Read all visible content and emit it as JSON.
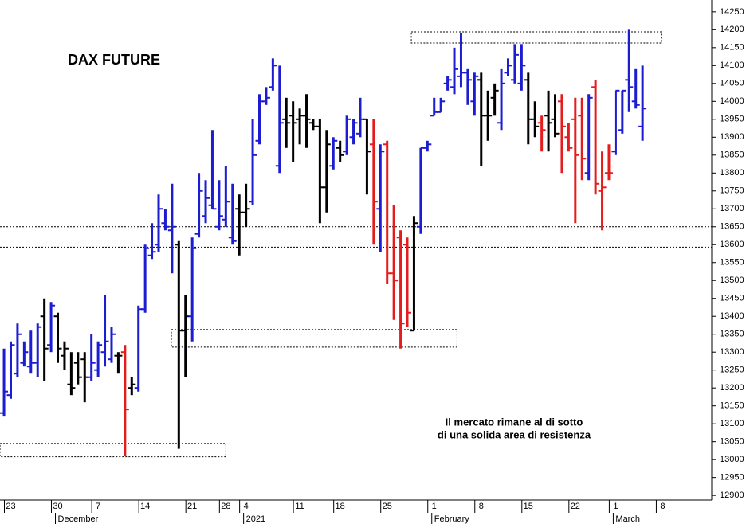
{
  "chart_data": {
    "type": "ohlc",
    "title": "DAX FUTURE",
    "annotation": [
      "Il mercato rimane al di sotto",
      "di una solida area di resistenza"
    ],
    "palette": {
      "u": "#1c1cd0",
      "d": "#e41c1c",
      "n": "#000000"
    },
    "bar_class": [
      "u",
      "u",
      "u",
      "u",
      "u",
      "u",
      "n",
      "u",
      "n",
      "n",
      "n",
      "n",
      "n",
      "u",
      "u",
      "u",
      "u",
      "n",
      "d",
      "n",
      "u",
      "u",
      "u",
      "u",
      "u",
      "u",
      "n",
      "n",
      "u",
      "u",
      "u",
      "u",
      "u",
      "u",
      "u",
      "n",
      "n",
      "u",
      "u",
      "u",
      "u",
      "u",
      "n",
      "n",
      "n",
      "n",
      "n",
      "n",
      "n",
      "u",
      "n",
      "u",
      "u",
      "u",
      "n",
      "d",
      "u",
      "d",
      "d",
      "d",
      "d",
      "n",
      "u",
      "u",
      "u",
      "u",
      "u",
      "u",
      "u",
      "u",
      "u",
      "n",
      "n",
      "n",
      "u",
      "u",
      "u",
      "u",
      "n",
      "n",
      "d",
      "n",
      "n",
      "d",
      "d",
      "d",
      "d",
      "u",
      "d",
      "d",
      "d",
      "u",
      "u",
      "u",
      "u",
      "u"
    ],
    "open": [
      13130,
      13180,
      13240,
      13270,
      13260,
      13270,
      13400,
      13320,
      13400,
      13290,
      13210,
      13270,
      13280,
      13230,
      13250,
      13300,
      13280,
      13290,
      13300,
      13200,
      13200,
      13420,
      13570,
      13600,
      13660,
      13640,
      13600,
      13360,
      13400,
      13630,
      13680,
      13710,
      13650,
      13670,
      13620,
      13700,
      13690,
      13720,
      13890,
      14000,
      14040,
      13820,
      13950,
      13960,
      13950,
      13960,
      13940,
      13930,
      13760,
      13820,
      13870,
      13860,
      13900,
      13910,
      13950,
      13880,
      13700,
      13880,
      13520,
      13620,
      13600,
      13360,
      13650,
      13870,
      13960,
      13970,
      14050,
      14040,
      14070,
      14080,
      14000,
      14060,
      13960,
      14010,
      13940,
      14080,
      14060,
      14050,
      14060,
      13950,
      13940,
      13960,
      13950,
      14000,
      13900,
      13950,
      13960,
      13800,
      14040,
      13750,
      13800,
      13860,
      13920,
      14060,
      14000,
      13930
    ],
    "high": [
      13310,
      13330,
      13380,
      13330,
      13360,
      13380,
      13450,
      13440,
      13410,
      13330,
      13300,
      13300,
      13300,
      13350,
      13330,
      13460,
      13370,
      13300,
      13320,
      13230,
      13430,
      13600,
      13660,
      13740,
      13700,
      13770,
      13610,
      13460,
      13620,
      13800,
      13780,
      13920,
      13780,
      13820,
      13770,
      13740,
      13770,
      13950,
      14020,
      14040,
      14120,
      14100,
      14010,
      14000,
      13980,
      14020,
      13950,
      13950,
      13920,
      13900,
      13890,
      13960,
      13950,
      14010,
      13950,
      13950,
      13880,
      13890,
      13710,
      13640,
      13620,
      13680,
      13870,
      13890,
      14010,
      14010,
      14070,
      14150,
      14190,
      14090,
      14080,
      14080,
      14030,
      14050,
      14090,
      14120,
      14160,
      14160,
      14080,
      14000,
      13960,
      14030,
      14020,
      14020,
      13940,
      14010,
      14010,
      14020,
      14060,
      13860,
      13880,
      14030,
      14030,
      14200,
      14090,
      14100
    ],
    "low": [
      13120,
      13170,
      13230,
      13260,
      13240,
      13230,
      13220,
      13300,
      13270,
      13250,
      13180,
      13210,
      13160,
      13220,
      13230,
      13260,
      13270,
      13240,
      13010,
      13180,
      13190,
      13410,
      13560,
      13580,
      13640,
      13520,
      13030,
      13230,
      13330,
      13620,
      13660,
      13700,
      13640,
      13650,
      13600,
      13570,
      13650,
      13710,
      13880,
      13990,
      14030,
      13800,
      13870,
      13830,
      13880,
      13870,
      13920,
      13660,
      13690,
      13810,
      13830,
      13850,
      13880,
      13900,
      13740,
      13600,
      13580,
      13490,
      13390,
      13310,
      13370,
      13360,
      13630,
      13860,
      13960,
      13970,
      14030,
      14020,
      14040,
      13990,
      13960,
      13820,
      13890,
      13960,
      13920,
      14070,
      14050,
      14030,
      13880,
      13900,
      13860,
      13860,
      13900,
      13800,
      13860,
      13660,
      13780,
      13780,
      13740,
      13640,
      13780,
      13850,
      13910,
      13970,
      13980,
      13890
    ],
    "close": [
      13190,
      13320,
      13350,
      13300,
      13270,
      13370,
      13310,
      13430,
      13310,
      13310,
      13200,
      13230,
      13230,
      13270,
      13320,
      13330,
      13350,
      13290,
      13140,
      13210,
      13420,
      13590,
      13580,
      13700,
      13650,
      13650,
      13360,
      13400,
      13590,
      13750,
      13730,
      13700,
      13680,
      13720,
      13610,
      13690,
      13700,
      13850,
      14000,
      14010,
      14100,
      13940,
      13940,
      13940,
      13960,
      13950,
      13930,
      13760,
      13880,
      13890,
      13850,
      13950,
      13940,
      13950,
      13860,
      13720,
      13860,
      13520,
      13500,
      13380,
      13410,
      13660,
      13870,
      13880,
      13970,
      14000,
      14060,
      14090,
      14080,
      14060,
      14070,
      13960,
      13960,
      14030,
      14050,
      14100,
      14130,
      14100,
      13950,
      13930,
      13920,
      13940,
      13910,
      13930,
      13870,
      13850,
      13840,
      14010,
      13770,
      13760,
      13800,
      14030,
      14030,
      14040,
      13990,
      13980
    ],
    "xlim": [
      -0.6,
      105.3
    ],
    "xticks": [
      {
        "value": 1,
        "label": "23"
      },
      {
        "value": 8,
        "label": "30"
      },
      {
        "value": 14,
        "label": "7"
      },
      {
        "value": 21,
        "label": "14"
      },
      {
        "value": 28,
        "label": "21"
      },
      {
        "value": 33,
        "label": "28"
      },
      {
        "value": 36,
        "label": "4"
      },
      {
        "value": 44,
        "label": "11"
      },
      {
        "value": 50,
        "label": "18"
      },
      {
        "value": 57,
        "label": "25"
      },
      {
        "value": 64,
        "label": "1"
      },
      {
        "value": 71,
        "label": "8"
      },
      {
        "value": 78,
        "label": "15"
      },
      {
        "value": 85,
        "label": "22"
      },
      {
        "value": 91,
        "label": "1"
      },
      {
        "value": 98,
        "label": "8"
      }
    ],
    "month_ticks": [
      {
        "value": 8,
        "label": "December"
      },
      {
        "value": 36,
        "label": "2021"
      },
      {
        "value": 64,
        "label": "February"
      },
      {
        "value": 91,
        "label": "March"
      }
    ],
    "ylim": [
      12887,
      14283
    ],
    "yticks": [
      12900,
      12950,
      13000,
      13050,
      13100,
      13150,
      13200,
      13250,
      13300,
      13350,
      13400,
      13450,
      13500,
      13550,
      13600,
      13650,
      13700,
      13750,
      13800,
      13850,
      13900,
      13950,
      14000,
      14050,
      14100,
      14150,
      14200,
      14250
    ],
    "reference_lines": [
      13650,
      13593
    ],
    "boxes": [
      {
        "x0": -0.6,
        "x1": 33,
        "y0": 13008,
        "y1": 13045
      },
      {
        "x0": 24.9,
        "x1": 67.4,
        "y0": 13314,
        "y1": 13363
      },
      {
        "x0": 60.6,
        "x1": 97.8,
        "y0": 14163,
        "y1": 14194
      }
    ]
  }
}
